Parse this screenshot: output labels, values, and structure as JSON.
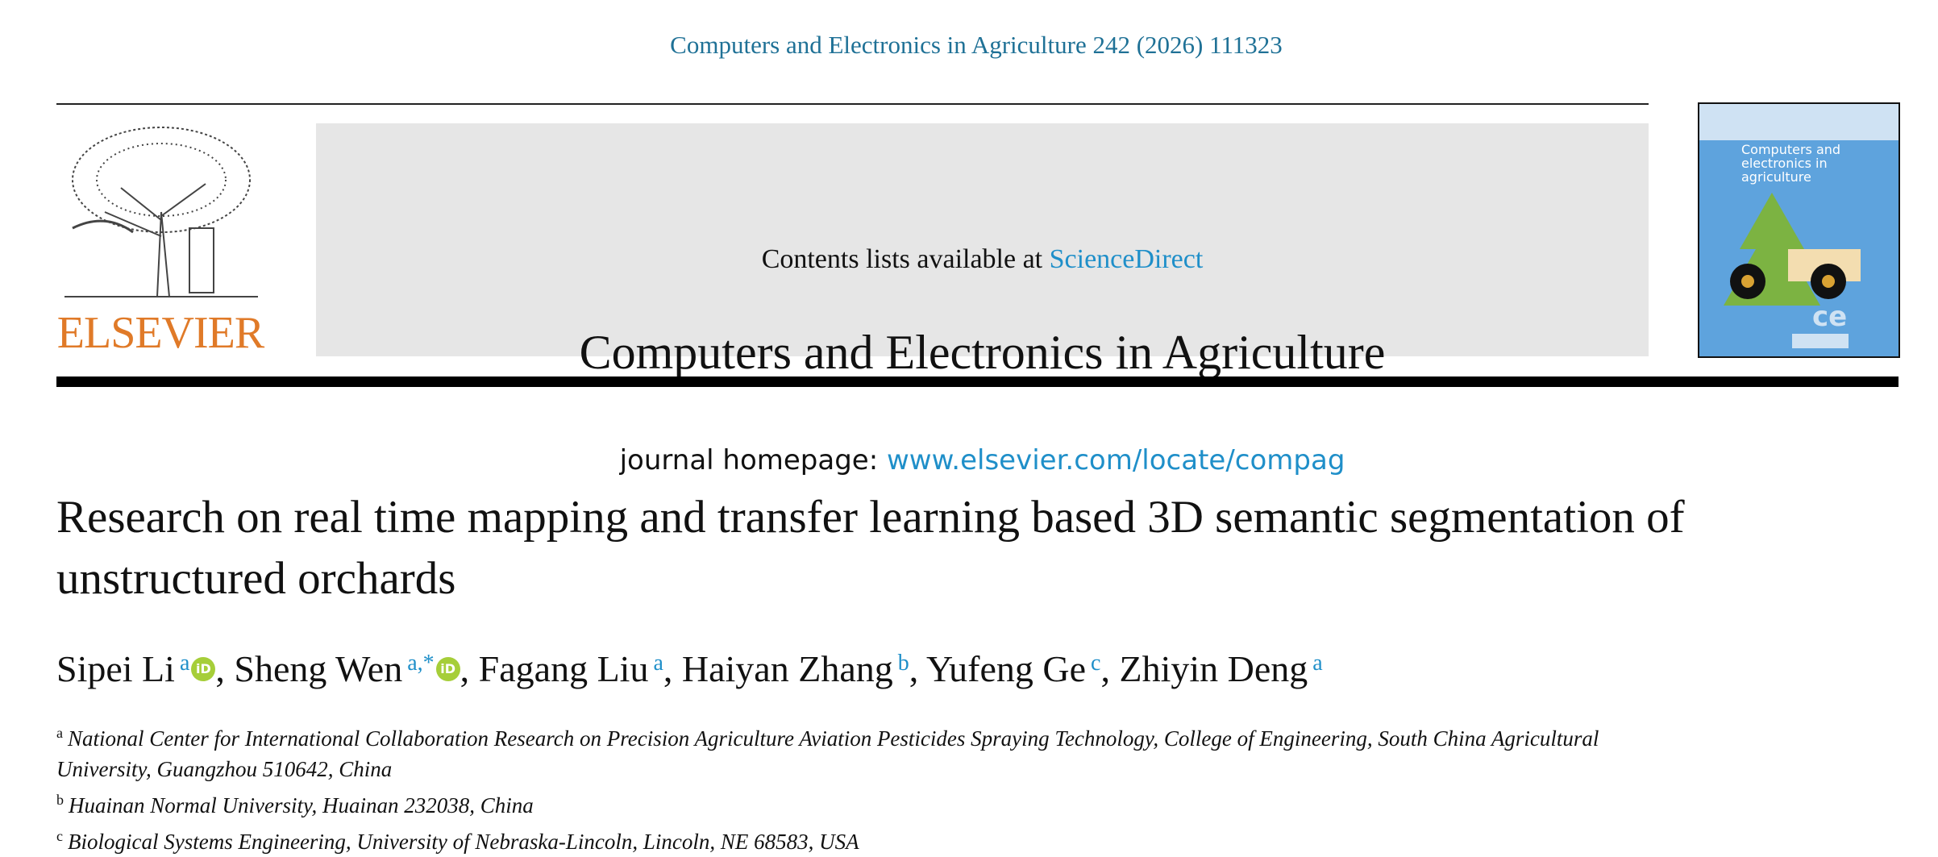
{
  "journal_reference": "Computers and Electronics in Agriculture 242 (2026) 111323",
  "header": {
    "contents_prefix": "Contents lists available at",
    "contents_link": "ScienceDirect",
    "journal_title": "Computers and Electronics in Agriculture",
    "homepage_prefix": "journal homepage:",
    "homepage_link": "www.elsevier.com/locate/compag",
    "publisher_logo_text": "ELSEVIER",
    "cover_title": "Computers and electronics in agriculture"
  },
  "article": {
    "title": "Research on real time mapping and transfer learning based 3D semantic segmentation of unstructured orchards",
    "authors": [
      {
        "name": "Sipei Li",
        "aff": "a",
        "orcid": true
      },
      {
        "name": "Sheng Wen",
        "aff": "a,*",
        "orcid": true
      },
      {
        "name": "Fagang Liu",
        "aff": "a",
        "orcid": false
      },
      {
        "name": "Haiyan Zhang",
        "aff": "b",
        "orcid": false
      },
      {
        "name": "Yufeng Ge",
        "aff": "c",
        "orcid": false
      },
      {
        "name": "Zhiyin Deng",
        "aff": "a",
        "orcid": false
      }
    ],
    "orcid_label": "iD",
    "affiliations": [
      {
        "key": "a",
        "text": "National Center for International Collaboration Research on Precision Agriculture Aviation Pesticides Spraying Technology, College of Engineering, South China Agricultural University, Guangzhou 510642, China"
      },
      {
        "key": "b",
        "text": "Huainan Normal University, Huainan 232038, China"
      },
      {
        "key": "c",
        "text": "Biological Systems Engineering, University of Nebraska-Lincoln, Lincoln, NE 68583, USA"
      }
    ]
  },
  "colors": {
    "link": "#1f8fc9",
    "journal_ref": "#1f7196",
    "elsevier_orange": "#e07a28",
    "orcid_green": "#a6ce39"
  }
}
